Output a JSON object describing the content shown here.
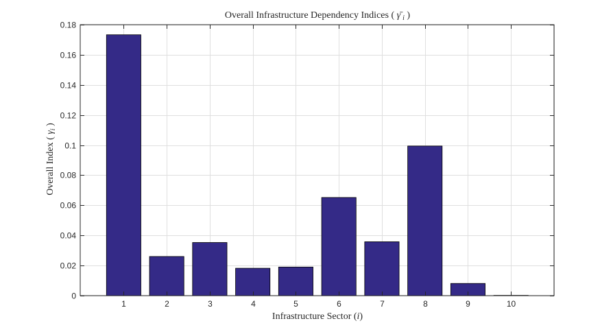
{
  "chart_data": {
    "type": "bar",
    "title": "Overall Infrastructure Dependency Indices ( γ̄ i )",
    "title_text": "Overall Infrastructure Dependency Indices ( ",
    "title_symbol": "γ̄",
    "title_subscript": "i",
    "title_close": " )",
    "xlabel": "Infrastructure Sector (i)",
    "xlabel_text": "Infrastructure Sector (",
    "xlabel_var": "i",
    "xlabel_close": ")",
    "ylabel": "Overall Index ( γi )",
    "ylabel_text": "Overall Index ( ",
    "ylabel_symbol": "γ",
    "ylabel_subscript": "i",
    "ylabel_close": " )",
    "categories": [
      "1",
      "2",
      "3",
      "4",
      "5",
      "6",
      "7",
      "8",
      "9",
      "10"
    ],
    "values": [
      0.1733,
      0.026,
      0.0353,
      0.0182,
      0.019,
      0.0652,
      0.0358,
      0.0994,
      0.0081,
      0.0002
    ],
    "ylim": [
      0,
      0.18
    ],
    "xlim": [
      -0.01,
      11.0
    ],
    "yticks": [
      "0",
      "0.02",
      "0.04",
      "0.06",
      "0.08",
      "0.1",
      "0.12",
      "0.14",
      "0.16",
      "0.18"
    ],
    "ytick_values": [
      0,
      0.02,
      0.04,
      0.06,
      0.08,
      0.1,
      0.12,
      0.14,
      0.16,
      0.18
    ],
    "xgrid_values": [
      1,
      2,
      3,
      4,
      5,
      6,
      7,
      8,
      9,
      10,
      11
    ],
    "grid": true,
    "bar_color": "#342a87",
    "bar_edge_color": "#000000",
    "grid_color": "#dfdfdf",
    "axis_color": "#262626"
  }
}
